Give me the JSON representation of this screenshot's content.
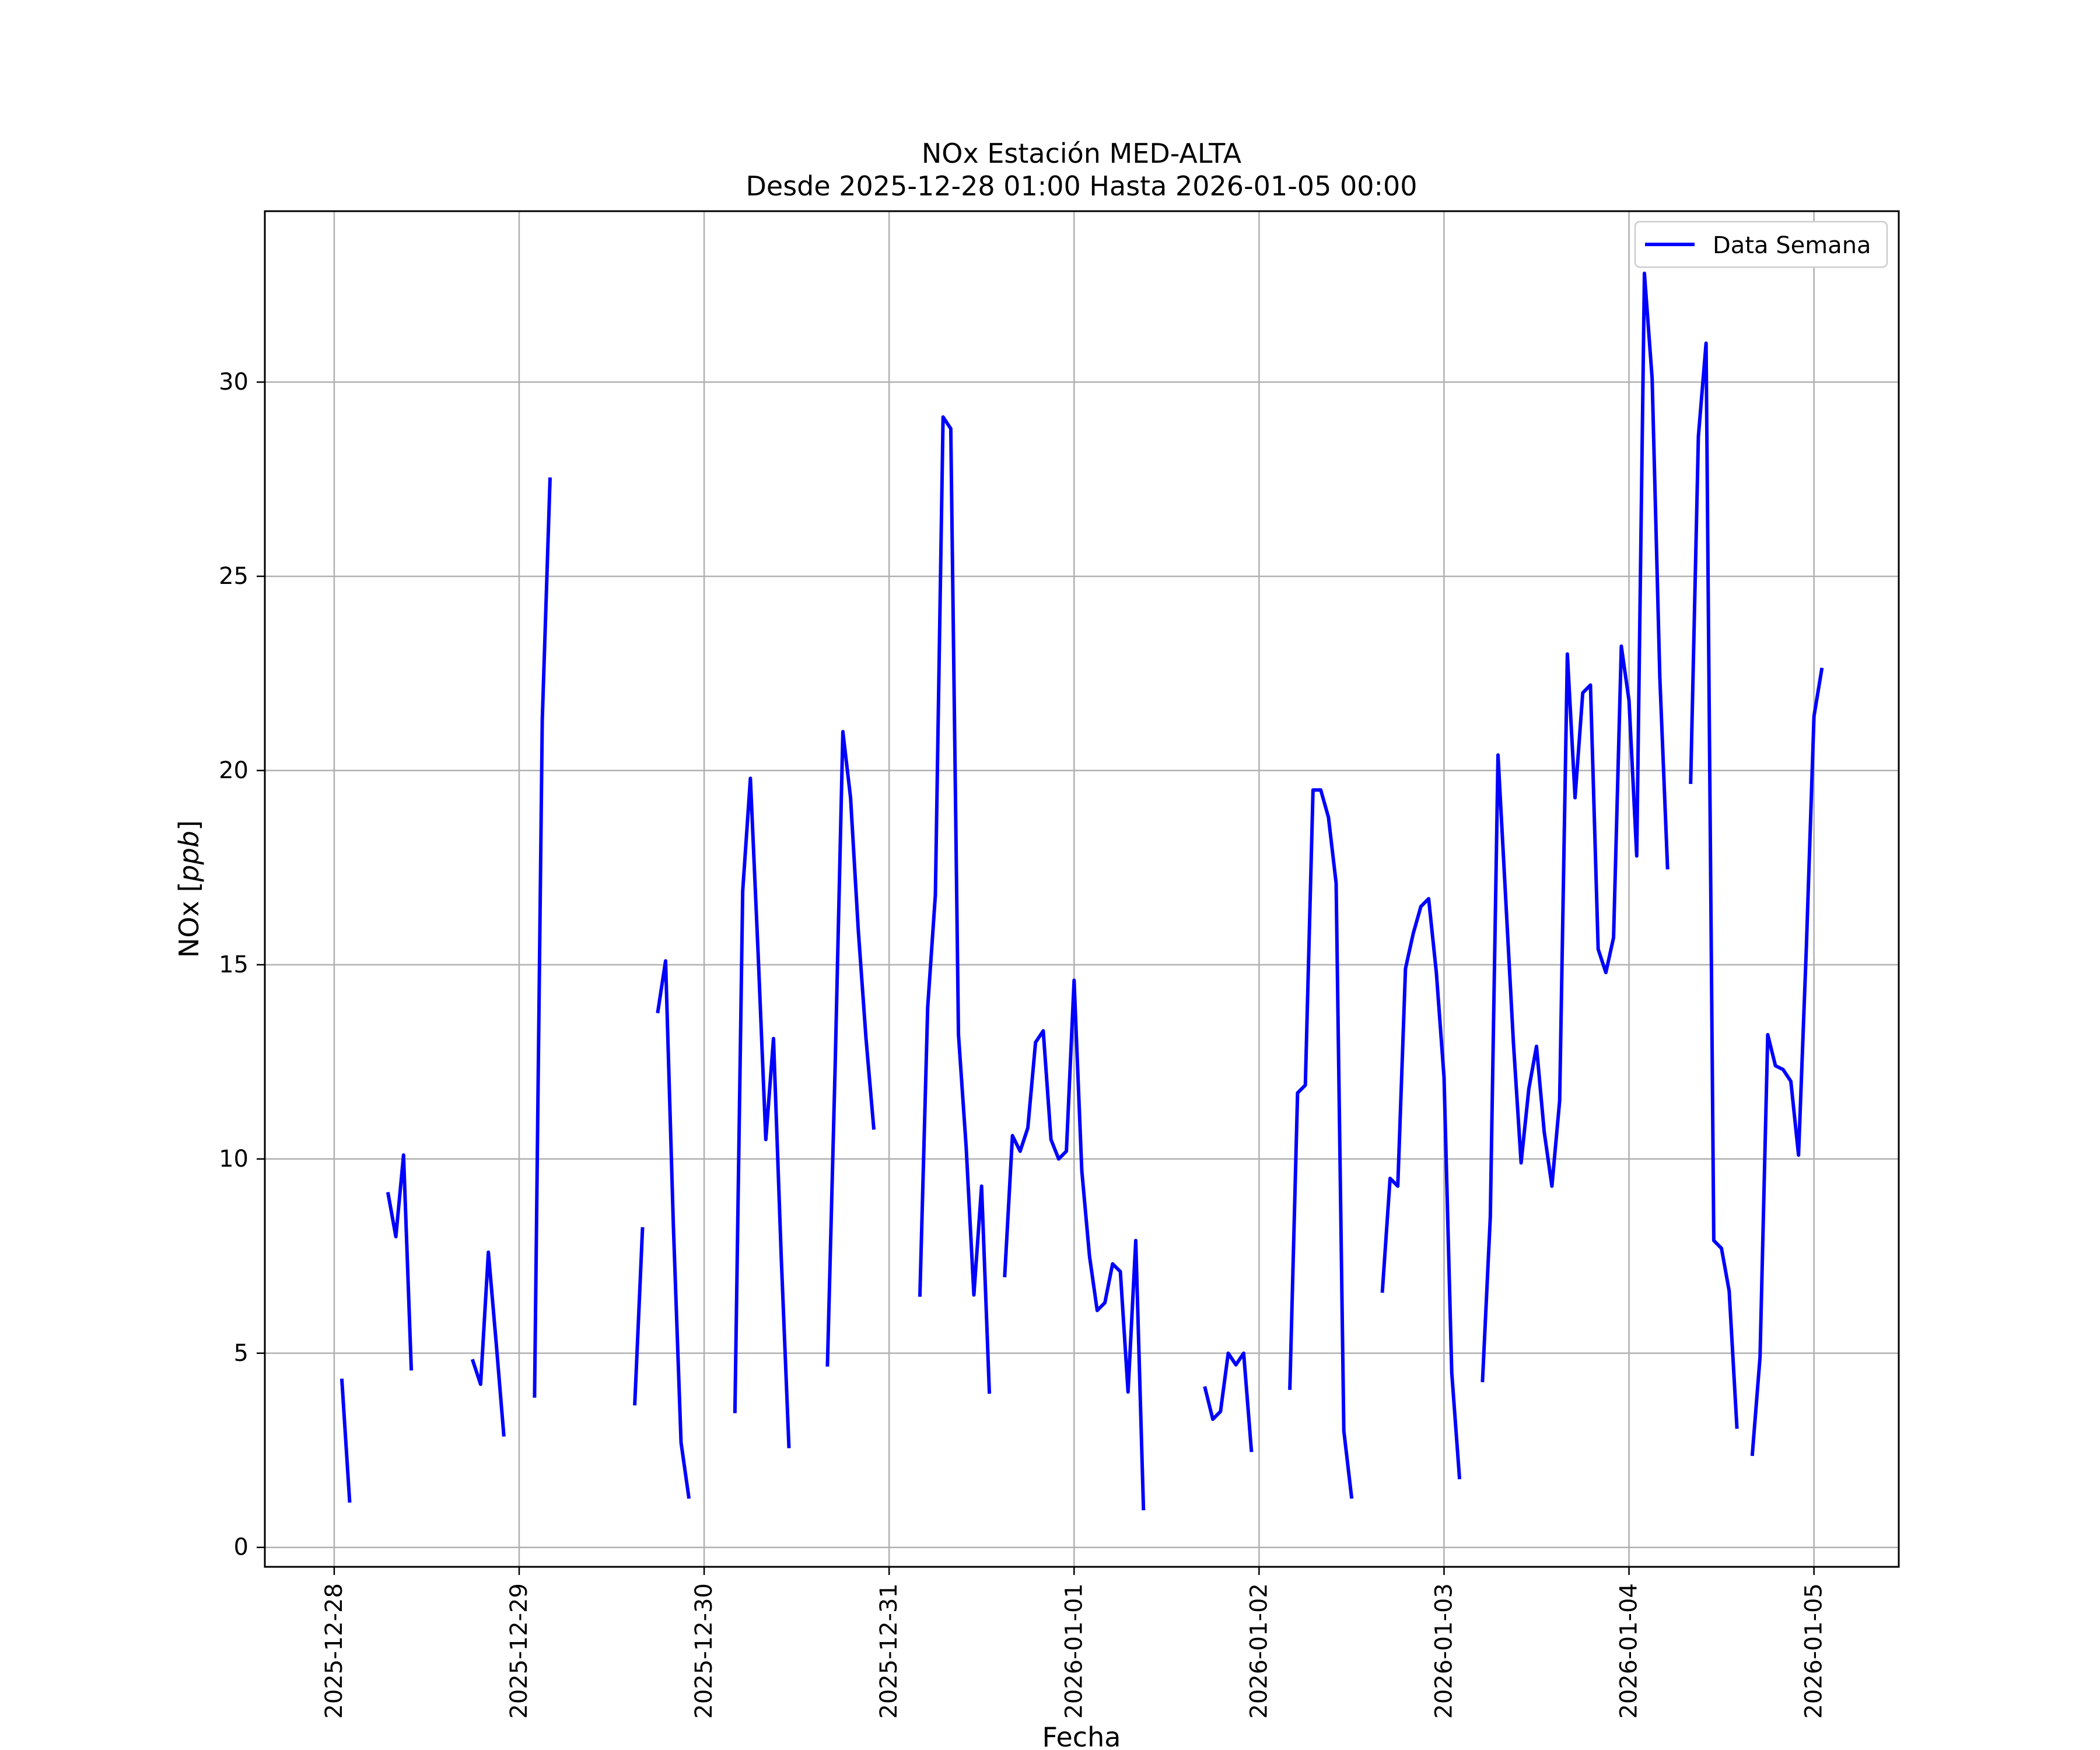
{
  "chart_data": {
    "type": "line",
    "title": "NOx Estación MED-ALTA",
    "subtitle": "Desde 2025-12-28 01:00 Hasta 2026-01-05 00:00",
    "xlabel": "Fecha",
    "ylabel": "NOx [ppb]",
    "ylabel_plain": "NOx [",
    "ylabel_italic": "ppb",
    "ylabel_close": "]",
    "xlim": [
      "2025-12-27 15:00",
      "2026-01-05 11:00"
    ],
    "ylim": [
      -0.5,
      34.4
    ],
    "grid": true,
    "legend_position": "top-right",
    "x_ticks": [
      "2025-12-28",
      "2025-12-29",
      "2025-12-30",
      "2025-12-31",
      "2026-01-01",
      "2026-01-02",
      "2026-01-03",
      "2026-01-04",
      "2026-01-05"
    ],
    "y_ticks": [
      0,
      5,
      10,
      15,
      20,
      25,
      30
    ],
    "line_color": "#0000ff",
    "series": [
      {
        "name": "Data Semana",
        "start": "2025-12-28 01:00",
        "step_hours": 1,
        "values": [
          4.3,
          1.2,
          null,
          null,
          null,
          null,
          9.1,
          8.0,
          10.1,
          4.6,
          null,
          null,
          null,
          null,
          null,
          null,
          null,
          4.8,
          4.2,
          7.6,
          5.3,
          2.9,
          null,
          null,
          null,
          3.9,
          21.3,
          27.5,
          null,
          null,
          null,
          null,
          null,
          null,
          null,
          null,
          null,
          null,
          3.7,
          8.2,
          null,
          13.8,
          15.1,
          8.3,
          2.7,
          1.3,
          null,
          null,
          null,
          null,
          null,
          3.5,
          16.9,
          19.8,
          15.3,
          10.5,
          13.1,
          7.5,
          2.6,
          null,
          null,
          null,
          null,
          4.7,
          12.4,
          21.0,
          19.3,
          15.9,
          13.1,
          10.8,
          null,
          null,
          null,
          null,
          null,
          6.5,
          13.9,
          16.8,
          29.1,
          28.8,
          13.2,
          10.3,
          6.5,
          9.3,
          4.0,
          null,
          7.0,
          10.6,
          10.2,
          10.8,
          13.0,
          13.3,
          10.5,
          10.0,
          10.2,
          14.6,
          9.7,
          7.5,
          6.1,
          6.3,
          7.3,
          7.1,
          4.0,
          7.9,
          1.0,
          null,
          null,
          null,
          null,
          null,
          null,
          null,
          4.1,
          3.3,
          3.5,
          5.0,
          4.7,
          5.0,
          2.5,
          null,
          null,
          null,
          null,
          4.1,
          11.7,
          11.9,
          19.5,
          19.5,
          18.8,
          17.1,
          3.0,
          1.3,
          null,
          null,
          null,
          6.6,
          9.5,
          9.3,
          14.9,
          15.8,
          16.5,
          16.7,
          14.8,
          12.1,
          4.5,
          1.8,
          null,
          null,
          4.3,
          8.5,
          20.4,
          16.7,
          13.0,
          9.9,
          11.8,
          12.9,
          10.7,
          9.3,
          11.5,
          23.0,
          19.3,
          22.0,
          22.2,
          15.4,
          14.8,
          15.7,
          23.2,
          21.8,
          17.8,
          32.8,
          30.1,
          22.4,
          17.5,
          null,
          null,
          19.7,
          28.6,
          31.0,
          7.9,
          7.7,
          6.6,
          3.1,
          null,
          2.4,
          4.9,
          13.2,
          12.4,
          12.3,
          12.0,
          10.1,
          15.4,
          21.4,
          22.6
        ]
      }
    ]
  }
}
